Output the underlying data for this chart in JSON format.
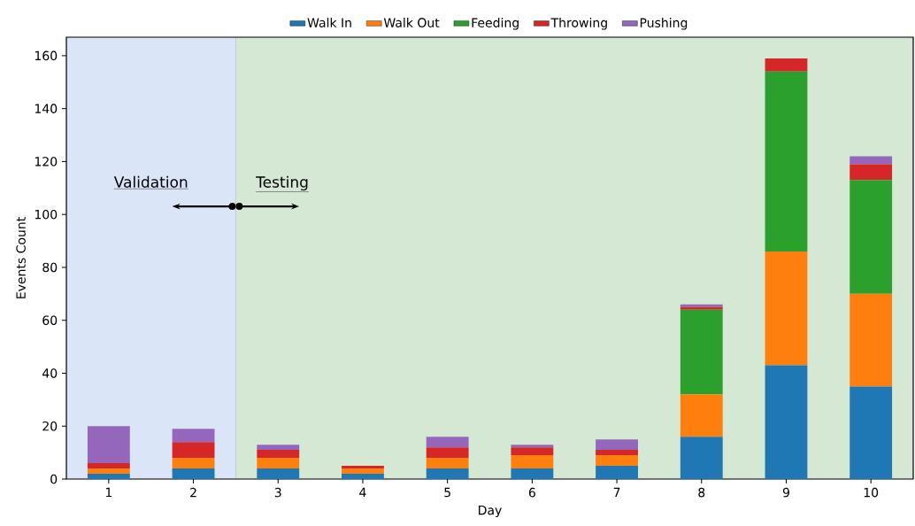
{
  "chart_data": {
    "type": "bar",
    "stacked": true,
    "xlabel": "Day",
    "ylabel": "Events Count",
    "x": [
      1,
      2,
      3,
      4,
      5,
      6,
      7,
      8,
      9,
      10
    ],
    "xlim": [
      0.5,
      10.5
    ],
    "xticks": [
      1,
      2,
      3,
      4,
      5,
      6,
      7,
      8,
      9,
      10
    ],
    "ylim": [
      0,
      167
    ],
    "yticks": [
      0,
      20,
      40,
      60,
      80,
      100,
      120,
      140,
      160
    ],
    "series": [
      {
        "name": "Walk In",
        "color": "#1f77b4",
        "values": [
          2,
          4,
          4,
          2,
          4,
          4,
          5,
          16,
          43,
          35
        ]
      },
      {
        "name": "Walk Out",
        "color": "#ff7f0e",
        "values": [
          2,
          4,
          4,
          2,
          4,
          5,
          4,
          16,
          43,
          35
        ]
      },
      {
        "name": "Feeding",
        "color": "#2ca02c",
        "values": [
          0,
          0,
          0,
          0,
          0,
          0,
          0,
          32,
          68,
          43
        ]
      },
      {
        "name": "Throwing",
        "color": "#d62728",
        "values": [
          2,
          6,
          3,
          1,
          4,
          3,
          2,
          1,
          5,
          6
        ]
      },
      {
        "name": "Pushing",
        "color": "#9467bd",
        "values": [
          14,
          5,
          2,
          0,
          4,
          1,
          4,
          1,
          0,
          3
        ]
      }
    ],
    "bands": [
      {
        "axis": "x",
        "from": 0.5,
        "to": 2.5,
        "label": "Validation",
        "color": "#dae5f8"
      },
      {
        "axis": "x",
        "from": 2.5,
        "to": 10.5,
        "label": "Testing",
        "color": "#d5e8d4"
      }
    ],
    "legend": "top",
    "grid": false
  }
}
